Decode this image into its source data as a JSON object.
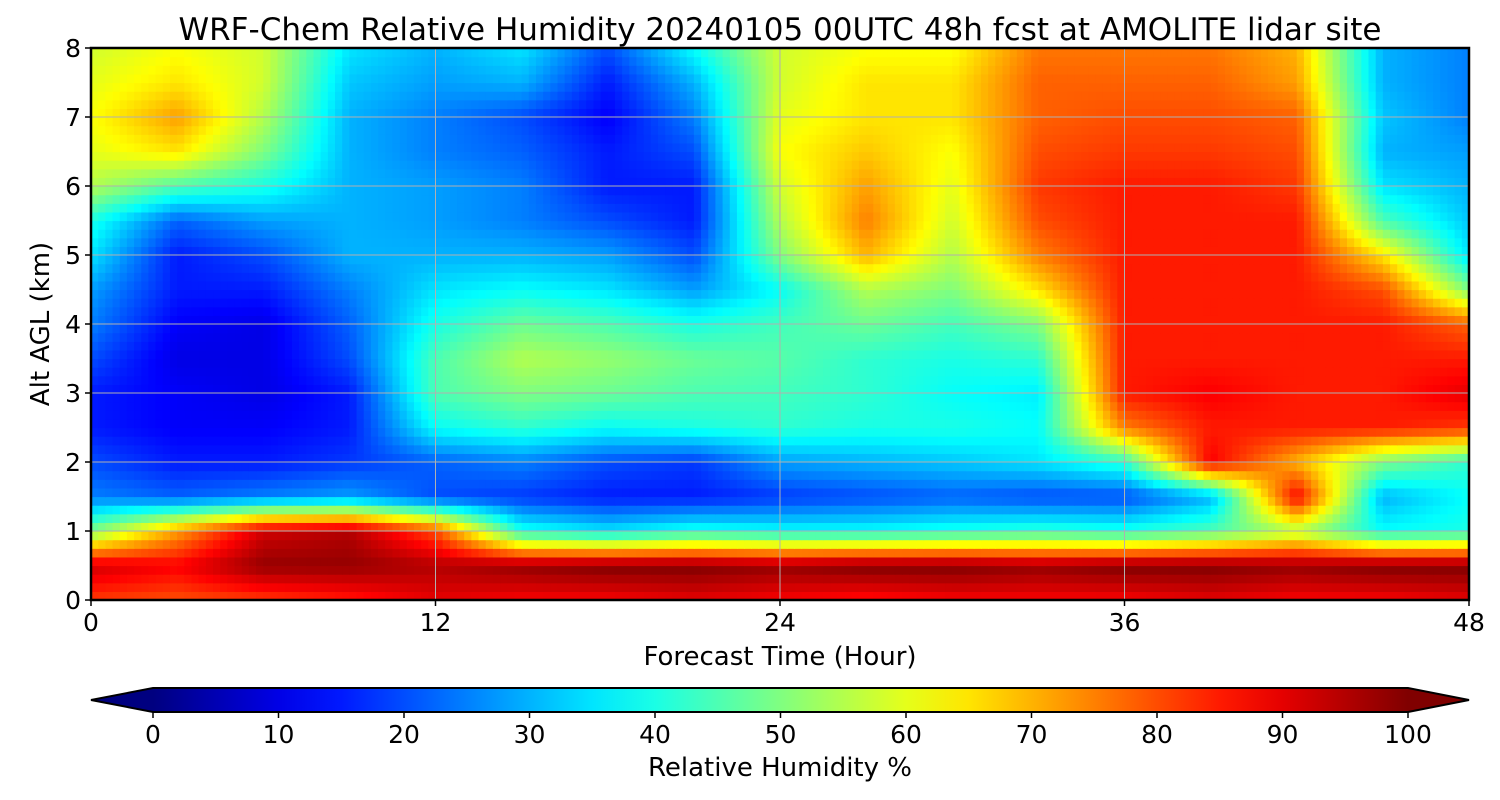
{
  "chart_data": {
    "type": "heatmap",
    "title": "WRF-Chem Relative Humidity 20240105 00UTC 48h fcst at AMOLITE lidar site",
    "xlabel": "Forecast Time (Hour)",
    "ylabel": "Alt AGL (km)",
    "xlim": [
      0,
      48
    ],
    "ylim": [
      0,
      8
    ],
    "xticks": [
      "0",
      "12",
      "24",
      "36",
      "48"
    ],
    "yticks": [
      "0",
      "1",
      "2",
      "3",
      "4",
      "5",
      "6",
      "7",
      "8"
    ],
    "grid": true,
    "colorbar": {
      "label": "Relative Humidity %",
      "range": [
        0,
        100
      ],
      "ticks": [
        "0",
        "10",
        "20",
        "30",
        "40",
        "50",
        "60",
        "70",
        "80",
        "90",
        "100"
      ],
      "colormap": "jet",
      "extend": "both"
    },
    "x": [
      0,
      3,
      6,
      9,
      12,
      15,
      18,
      21,
      24,
      27,
      30,
      33,
      36,
      39,
      42,
      45,
      48
    ],
    "y": [
      0,
      0.5,
      1,
      1.5,
      2,
      2.5,
      3,
      3.5,
      4,
      4.5,
      5,
      5.5,
      6,
      6.5,
      7,
      7.5,
      8
    ],
    "values": [
      [
        82,
        80,
        82,
        85,
        90,
        88,
        88,
        90,
        88,
        86,
        88,
        88,
        88,
        90,
        88,
        88,
        90
      ],
      [
        92,
        88,
        98,
        98,
        95,
        98,
        100,
        100,
        98,
        100,
        100,
        98,
        100,
        100,
        98,
        100,
        100
      ],
      [
        50,
        72,
        92,
        95,
        80,
        40,
        35,
        40,
        38,
        38,
        40,
        42,
        40,
        45,
        55,
        38,
        40
      ],
      [
        25,
        22,
        25,
        28,
        20,
        18,
        15,
        15,
        18,
        20,
        22,
        20,
        20,
        30,
        88,
        30,
        38
      ],
      [
        20,
        15,
        15,
        18,
        22,
        25,
        20,
        18,
        28,
        30,
        32,
        35,
        42,
        88,
        70,
        50,
        42
      ],
      [
        15,
        12,
        12,
        15,
        38,
        42,
        38,
        40,
        42,
        40,
        40,
        38,
        75,
        85,
        85,
        85,
        82
      ],
      [
        15,
        12,
        10,
        15,
        45,
        50,
        48,
        45,
        44,
        42,
        38,
        36,
        85,
        88,
        85,
        85,
        90
      ],
      [
        20,
        10,
        10,
        20,
        45,
        55,
        52,
        48,
        46,
        42,
        40,
        42,
        85,
        85,
        85,
        85,
        85
      ],
      [
        25,
        12,
        10,
        22,
        40,
        48,
        45,
        40,
        44,
        48,
        44,
        50,
        85,
        85,
        85,
        85,
        78
      ],
      [
        28,
        15,
        15,
        25,
        35,
        38,
        35,
        28,
        38,
        55,
        50,
        65,
        85,
        85,
        85,
        80,
        50
      ],
      [
        35,
        15,
        20,
        30,
        30,
        30,
        28,
        20,
        50,
        70,
        55,
        75,
        85,
        85,
        85,
        65,
        35
      ],
      [
        40,
        22,
        28,
        30,
        28,
        25,
        20,
        15,
        55,
        75,
        58,
        80,
        85,
        85,
        85,
        45,
        32
      ],
      [
        55,
        45,
        40,
        30,
        28,
        25,
        15,
        15,
        58,
        72,
        60,
        82,
        85,
        85,
        82,
        35,
        30
      ],
      [
        60,
        65,
        50,
        30,
        25,
        22,
        15,
        20,
        62,
        68,
        62,
        80,
        82,
        82,
        80,
        30,
        28
      ],
      [
        62,
        72,
        55,
        30,
        25,
        20,
        12,
        25,
        60,
        65,
        65,
        78,
        80,
        80,
        78,
        32,
        25
      ],
      [
        60,
        65,
        58,
        32,
        28,
        30,
        15,
        30,
        58,
        65,
        65,
        78,
        78,
        78,
        72,
        30,
        25
      ],
      [
        58,
        62,
        58,
        35,
        30,
        35,
        20,
        38,
        58,
        62,
        62,
        76,
        76,
        76,
        70,
        30,
        25
      ]
    ]
  }
}
